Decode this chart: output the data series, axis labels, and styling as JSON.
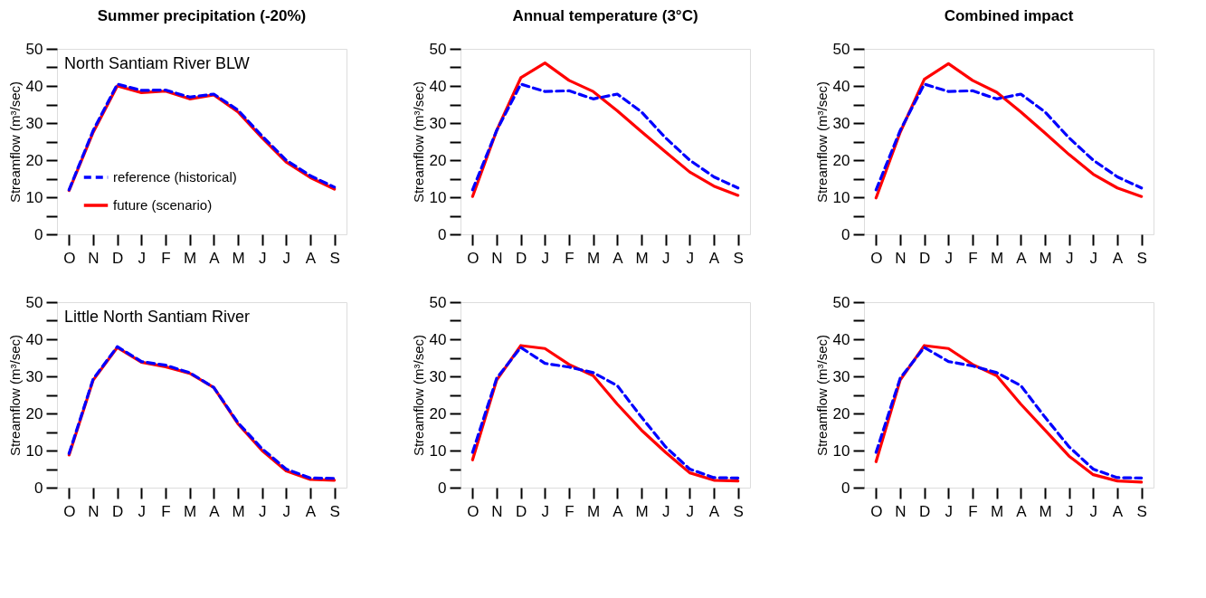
{
  "chart_data": [
    {
      "type": "line",
      "title": "Summer precipitation (-20%)",
      "ylabel": "Streamflow (m³/sec)",
      "annotations": [
        "North Santiam River BLW"
      ],
      "legend": "bottom left",
      "grid": false,
      "categories": [
        "O",
        "N",
        "D",
        "J",
        "F",
        "M",
        "A",
        "M",
        "J",
        "J",
        "A",
        "S"
      ],
      "ylim": [
        0,
        50
      ],
      "yticks": [
        0,
        {
          "value": 5,
          "label": null
        },
        10,
        {
          "value": 15,
          "label": null
        },
        20,
        {
          "value": 25,
          "label": null
        },
        30,
        {
          "value": 35,
          "label": null
        },
        40,
        {
          "value": 45,
          "label": null
        },
        50
      ],
      "series": [
        {
          "name": "reference (historical)",
          "color": "#0000ff",
          "line_style": "dashed",
          "values": [
            12,
            28,
            40.5,
            38.8,
            38.9,
            37,
            37.8,
            33.5,
            26.5,
            20,
            15.8,
            12.7
          ]
        },
        {
          "name": "future (scenario)",
          "color": "#ff0000",
          "line_style": "solid",
          "values": [
            11.8,
            27.5,
            40,
            38.2,
            38.6,
            36.5,
            37.6,
            33,
            26,
            19.5,
            15.3,
            12.2
          ]
        }
      ]
    },
    {
      "type": "line",
      "title": "Annual temperature (3°C)",
      "ylabel": "Streamflow (m³/sec)",
      "grid": false,
      "categories": [
        "O",
        "N",
        "D",
        "J",
        "F",
        "M",
        "A",
        "M",
        "J",
        "J",
        "A",
        "S"
      ],
      "ylim": [
        0,
        50
      ],
      "yticks": [
        0,
        {
          "value": 5,
          "label": null
        },
        10,
        {
          "value": 15,
          "label": null
        },
        20,
        {
          "value": 25,
          "label": null
        },
        30,
        {
          "value": 35,
          "label": null
        },
        40,
        {
          "value": 45,
          "label": null
        },
        50
      ],
      "series": [
        {
          "color": "#0000ff",
          "line_style": "dashed",
          "values": [
            12,
            28,
            40.5,
            38.5,
            38.7,
            36.5,
            37.8,
            33,
            26,
            20,
            15.5,
            12.5
          ]
        },
        {
          "color": "#ff0000",
          "line_style": "solid",
          "values": [
            10.2,
            28,
            42.2,
            46.2,
            41.5,
            38.5,
            33.3,
            27.7,
            22.2,
            16.8,
            13,
            10.5
          ]
        }
      ]
    },
    {
      "type": "line",
      "title": "Combined impact",
      "ylabel": "Streamflow (m³/sec)",
      "grid": false,
      "categories": [
        "O",
        "N",
        "D",
        "J",
        "F",
        "M",
        "A",
        "M",
        "J",
        "J",
        "A",
        "S"
      ],
      "ylim": [
        0,
        50
      ],
      "yticks": [
        0,
        {
          "value": 5,
          "label": null
        },
        10,
        {
          "value": 15,
          "label": null
        },
        20,
        {
          "value": 25,
          "label": null
        },
        30,
        {
          "value": 35,
          "label": null
        },
        40,
        {
          "value": 45,
          "label": null
        },
        50
      ],
      "series": [
        {
          "color": "#0000ff",
          "line_style": "dashed",
          "values": [
            12,
            28,
            40.5,
            38.5,
            38.7,
            36.5,
            37.8,
            33,
            26,
            20,
            15.5,
            12.5
          ]
        },
        {
          "color": "#ff0000",
          "line_style": "solid",
          "values": [
            9.8,
            27.5,
            41.8,
            46,
            41.5,
            38.3,
            33,
            27.3,
            21.5,
            16.2,
            12.5,
            10.2
          ]
        }
      ]
    },
    {
      "type": "line",
      "ylabel": "Streamflow (m³/sec)",
      "annotations": [
        "Little North Santiam River"
      ],
      "grid": false,
      "categories": [
        "O",
        "N",
        "D",
        "J",
        "F",
        "M",
        "A",
        "M",
        "J",
        "J",
        "A",
        "S"
      ],
      "ylim": [
        0,
        50
      ],
      "yticks": [
        0,
        {
          "value": 5,
          "label": null
        },
        10,
        {
          "value": 15,
          "label": null
        },
        20,
        {
          "value": 25,
          "label": null
        },
        30,
        {
          "value": 35,
          "label": null
        },
        40,
        {
          "value": 45,
          "label": null
        },
        50
      ],
      "series": [
        {
          "color": "#0000ff",
          "line_style": "dashed",
          "values": [
            9.2,
            29.3,
            38,
            34,
            33,
            31,
            27,
            17.5,
            10.5,
            5,
            2.6,
            2.5
          ]
        },
        {
          "color": "#ff0000",
          "line_style": "solid",
          "values": [
            8.8,
            29,
            37.8,
            33.8,
            32.6,
            30.8,
            27,
            17.2,
            10,
            4.5,
            2.2,
            2
          ]
        }
      ]
    },
    {
      "type": "line",
      "ylabel": "Streamflow (m³/sec)",
      "grid": false,
      "categories": [
        "O",
        "N",
        "D",
        "J",
        "F",
        "M",
        "A",
        "M",
        "J",
        "J",
        "A",
        "S"
      ],
      "ylim": [
        0,
        50
      ],
      "yticks": [
        0,
        {
          "value": 5,
          "label": null
        },
        10,
        {
          "value": 15,
          "label": null
        },
        20,
        {
          "value": 25,
          "label": null
        },
        30,
        {
          "value": 35,
          "label": null
        },
        40,
        {
          "value": 45,
          "label": null
        },
        50
      ],
      "series": [
        {
          "color": "#0000ff",
          "line_style": "dashed",
          "values": [
            9.5,
            29.5,
            37.8,
            33.5,
            32.5,
            31,
            27.5,
            19,
            11,
            5,
            2.7,
            2.6
          ]
        },
        {
          "color": "#ff0000",
          "line_style": "solid",
          "values": [
            7.5,
            29,
            38.3,
            37.5,
            33.2,
            30.2,
            22.5,
            15.5,
            9.5,
            4,
            2,
            1.8
          ]
        }
      ]
    },
    {
      "type": "line",
      "ylabel": "Streamflow (m³/sec)",
      "grid": false,
      "categories": [
        "O",
        "N",
        "D",
        "J",
        "F",
        "M",
        "A",
        "M",
        "J",
        "J",
        "A",
        "S"
      ],
      "ylim": [
        0,
        50
      ],
      "yticks": [
        0,
        {
          "value": 5,
          "label": null
        },
        10,
        {
          "value": 15,
          "label": null
        },
        20,
        {
          "value": 25,
          "label": null
        },
        30,
        {
          "value": 35,
          "label": null
        },
        40,
        {
          "value": 45,
          "label": null
        },
        50
      ],
      "series": [
        {
          "color": "#0000ff",
          "line_style": "dashed",
          "values": [
            9.5,
            29.5,
            37.8,
            34,
            32.8,
            31,
            27.5,
            19,
            11,
            5,
            2.7,
            2.6
          ]
        },
        {
          "color": "#ff0000",
          "line_style": "solid",
          "values": [
            7,
            29,
            38.3,
            37.5,
            33.2,
            30.2,
            22.5,
            15.5,
            8.5,
            3.5,
            1.8,
            1.5
          ]
        }
      ]
    }
  ]
}
